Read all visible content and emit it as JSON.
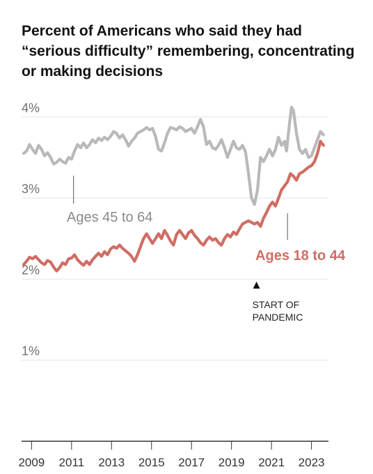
{
  "chart_data": {
    "type": "line",
    "title": "Percent of Americans who said they had “serious difficulty” remembering, concentrating or making decisions",
    "y_ticks": [
      "1%",
      "2%",
      "3%",
      "4%"
    ],
    "y_tick_values": [
      1,
      2,
      3,
      4
    ],
    "ylim": [
      0,
      4.2
    ],
    "x_ticks": [
      "2009",
      "2011",
      "2013",
      "2015",
      "2017",
      "2019",
      "2021",
      "2023"
    ],
    "x_tick_values": [
      2009,
      2011,
      2013,
      2015,
      2017,
      2019,
      2021,
      2023
    ],
    "xlim": [
      2008.5,
      2023.85
    ],
    "grid": true,
    "annotation": {
      "line1": "START OF",
      "line2": "PANDEMIC",
      "x": 2020.25
    },
    "series": [
      {
        "name": "Ages 45 to 64",
        "color": "#b9b9b9",
        "label_anchor_x": 2011.1,
        "points": [
          [
            2008.6,
            3.55
          ],
          [
            2008.75,
            3.58
          ],
          [
            2008.9,
            3.66
          ],
          [
            2009.05,
            3.6
          ],
          [
            2009.2,
            3.55
          ],
          [
            2009.35,
            3.65
          ],
          [
            2009.5,
            3.6
          ],
          [
            2009.65,
            3.52
          ],
          [
            2009.8,
            3.56
          ],
          [
            2009.95,
            3.5
          ],
          [
            2010.1,
            3.42
          ],
          [
            2010.25,
            3.44
          ],
          [
            2010.4,
            3.48
          ],
          [
            2010.55,
            3.45
          ],
          [
            2010.7,
            3.43
          ],
          [
            2010.85,
            3.5
          ],
          [
            2011.0,
            3.48
          ],
          [
            2011.15,
            3.58
          ],
          [
            2011.3,
            3.66
          ],
          [
            2011.45,
            3.62
          ],
          [
            2011.6,
            3.68
          ],
          [
            2011.75,
            3.62
          ],
          [
            2011.9,
            3.66
          ],
          [
            2012.05,
            3.72
          ],
          [
            2012.2,
            3.68
          ],
          [
            2012.35,
            3.74
          ],
          [
            2012.5,
            3.71
          ],
          [
            2012.65,
            3.75
          ],
          [
            2012.8,
            3.72
          ],
          [
            2012.95,
            3.76
          ],
          [
            2013.1,
            3.82
          ],
          [
            2013.25,
            3.8
          ],
          [
            2013.4,
            3.74
          ],
          [
            2013.55,
            3.78
          ],
          [
            2013.7,
            3.72
          ],
          [
            2013.85,
            3.64
          ],
          [
            2014.0,
            3.7
          ],
          [
            2014.15,
            3.74
          ],
          [
            2014.3,
            3.8
          ],
          [
            2014.45,
            3.82
          ],
          [
            2014.6,
            3.84
          ],
          [
            2014.75,
            3.87
          ],
          [
            2014.9,
            3.84
          ],
          [
            2015.05,
            3.86
          ],
          [
            2015.2,
            3.76
          ],
          [
            2015.35,
            3.6
          ],
          [
            2015.5,
            3.58
          ],
          [
            2015.65,
            3.68
          ],
          [
            2015.8,
            3.8
          ],
          [
            2015.95,
            3.87
          ],
          [
            2016.1,
            3.86
          ],
          [
            2016.25,
            3.84
          ],
          [
            2016.4,
            3.88
          ],
          [
            2016.55,
            3.86
          ],
          [
            2016.7,
            3.82
          ],
          [
            2016.85,
            3.84
          ],
          [
            2017.0,
            3.86
          ],
          [
            2017.15,
            3.8
          ],
          [
            2017.3,
            3.88
          ],
          [
            2017.45,
            3.97
          ],
          [
            2017.6,
            3.88
          ],
          [
            2017.75,
            3.66
          ],
          [
            2017.9,
            3.7
          ],
          [
            2018.05,
            3.62
          ],
          [
            2018.2,
            3.6
          ],
          [
            2018.35,
            3.65
          ],
          [
            2018.5,
            3.72
          ],
          [
            2018.65,
            3.62
          ],
          [
            2018.8,
            3.5
          ],
          [
            2018.95,
            3.6
          ],
          [
            2019.1,
            3.7
          ],
          [
            2019.25,
            3.62
          ],
          [
            2019.4,
            3.6
          ],
          [
            2019.55,
            3.65
          ],
          [
            2019.7,
            3.57
          ],
          [
            2019.85,
            3.3
          ],
          [
            2020.0,
            3.0
          ],
          [
            2020.15,
            2.92
          ],
          [
            2020.3,
            3.1
          ],
          [
            2020.45,
            3.5
          ],
          [
            2020.6,
            3.45
          ],
          [
            2020.75,
            3.52
          ],
          [
            2020.9,
            3.6
          ],
          [
            2021.05,
            3.52
          ],
          [
            2021.2,
            3.6
          ],
          [
            2021.35,
            3.75
          ],
          [
            2021.5,
            3.65
          ],
          [
            2021.65,
            3.7
          ],
          [
            2021.75,
            3.58
          ],
          [
            2021.9,
            3.92
          ],
          [
            2022.0,
            4.12
          ],
          [
            2022.1,
            4.08
          ],
          [
            2022.25,
            3.8
          ],
          [
            2022.4,
            3.6
          ],
          [
            2022.55,
            3.55
          ],
          [
            2022.7,
            3.6
          ],
          [
            2022.85,
            3.5
          ],
          [
            2023.0,
            3.52
          ],
          [
            2023.15,
            3.62
          ],
          [
            2023.3,
            3.72
          ],
          [
            2023.45,
            3.82
          ],
          [
            2023.6,
            3.78
          ]
        ]
      },
      {
        "name": "Ages 18 to 44",
        "color": "#d06d64",
        "label_anchor_x": 2021.8,
        "points": [
          [
            2008.6,
            2.18
          ],
          [
            2008.75,
            2.22
          ],
          [
            2008.9,
            2.27
          ],
          [
            2009.05,
            2.25
          ],
          [
            2009.2,
            2.28
          ],
          [
            2009.35,
            2.24
          ],
          [
            2009.5,
            2.2
          ],
          [
            2009.65,
            2.18
          ],
          [
            2009.8,
            2.23
          ],
          [
            2009.95,
            2.21
          ],
          [
            2010.1,
            2.15
          ],
          [
            2010.25,
            2.1
          ],
          [
            2010.4,
            2.14
          ],
          [
            2010.55,
            2.2
          ],
          [
            2010.7,
            2.18
          ],
          [
            2010.85,
            2.25
          ],
          [
            2011.0,
            2.26
          ],
          [
            2011.15,
            2.3
          ],
          [
            2011.3,
            2.24
          ],
          [
            2011.45,
            2.2
          ],
          [
            2011.6,
            2.17
          ],
          [
            2011.75,
            2.22
          ],
          [
            2011.9,
            2.18
          ],
          [
            2012.05,
            2.24
          ],
          [
            2012.2,
            2.28
          ],
          [
            2012.35,
            2.32
          ],
          [
            2012.5,
            2.28
          ],
          [
            2012.65,
            2.34
          ],
          [
            2012.8,
            2.3
          ],
          [
            2012.95,
            2.37
          ],
          [
            2013.1,
            2.4
          ],
          [
            2013.25,
            2.38
          ],
          [
            2013.4,
            2.42
          ],
          [
            2013.55,
            2.38
          ],
          [
            2013.7,
            2.35
          ],
          [
            2013.85,
            2.32
          ],
          [
            2014.0,
            2.28
          ],
          [
            2014.15,
            2.22
          ],
          [
            2014.3,
            2.3
          ],
          [
            2014.45,
            2.4
          ],
          [
            2014.6,
            2.5
          ],
          [
            2014.75,
            2.56
          ],
          [
            2014.9,
            2.5
          ],
          [
            2015.05,
            2.44
          ],
          [
            2015.2,
            2.5
          ],
          [
            2015.35,
            2.56
          ],
          [
            2015.5,
            2.5
          ],
          [
            2015.65,
            2.6
          ],
          [
            2015.8,
            2.54
          ],
          [
            2015.95,
            2.47
          ],
          [
            2016.1,
            2.42
          ],
          [
            2016.25,
            2.55
          ],
          [
            2016.4,
            2.6
          ],
          [
            2016.55,
            2.55
          ],
          [
            2016.7,
            2.5
          ],
          [
            2016.85,
            2.57
          ],
          [
            2017.0,
            2.6
          ],
          [
            2017.15,
            2.54
          ],
          [
            2017.3,
            2.5
          ],
          [
            2017.45,
            2.45
          ],
          [
            2017.6,
            2.42
          ],
          [
            2017.75,
            2.48
          ],
          [
            2017.9,
            2.52
          ],
          [
            2018.05,
            2.48
          ],
          [
            2018.2,
            2.5
          ],
          [
            2018.35,
            2.45
          ],
          [
            2018.5,
            2.42
          ],
          [
            2018.65,
            2.5
          ],
          [
            2018.8,
            2.55
          ],
          [
            2018.95,
            2.52
          ],
          [
            2019.1,
            2.58
          ],
          [
            2019.25,
            2.55
          ],
          [
            2019.4,
            2.62
          ],
          [
            2019.55,
            2.68
          ],
          [
            2019.7,
            2.7
          ],
          [
            2019.85,
            2.72
          ],
          [
            2020.0,
            2.7
          ],
          [
            2020.15,
            2.68
          ],
          [
            2020.3,
            2.7
          ],
          [
            2020.45,
            2.65
          ],
          [
            2020.6,
            2.75
          ],
          [
            2020.75,
            2.82
          ],
          [
            2020.9,
            2.9
          ],
          [
            2021.05,
            2.95
          ],
          [
            2021.2,
            2.9
          ],
          [
            2021.35,
            3.0
          ],
          [
            2021.5,
            3.1
          ],
          [
            2021.65,
            3.15
          ],
          [
            2021.8,
            3.2
          ],
          [
            2021.95,
            3.3
          ],
          [
            2022.1,
            3.27
          ],
          [
            2022.25,
            3.22
          ],
          [
            2022.4,
            3.3
          ],
          [
            2022.55,
            3.32
          ],
          [
            2022.7,
            3.35
          ],
          [
            2022.85,
            3.38
          ],
          [
            2023.0,
            3.4
          ],
          [
            2023.15,
            3.45
          ],
          [
            2023.3,
            3.55
          ],
          [
            2023.45,
            3.7
          ],
          [
            2023.6,
            3.65
          ]
        ]
      }
    ]
  }
}
